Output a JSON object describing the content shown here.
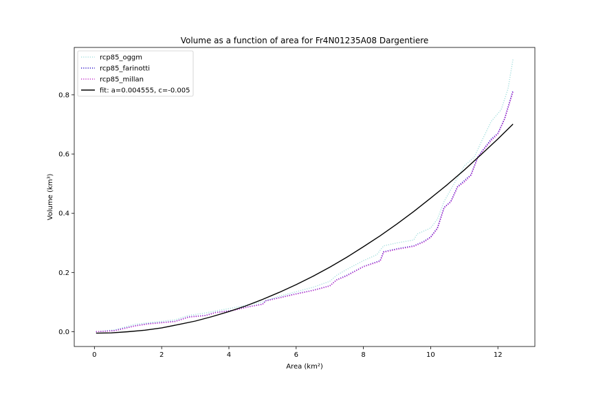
{
  "chart_data": {
    "type": "line",
    "title": "Volume as a function of area for Fr4N01235A08 Dargentiere",
    "xlabel": "Area (km²)",
    "ylabel": "Volume (km³)",
    "xlim": [
      -0.6,
      13.1
    ],
    "ylim": [
      -0.05,
      0.96
    ],
    "xticks": [
      0,
      2,
      4,
      6,
      8,
      10,
      12
    ],
    "yticks": [
      0.0,
      0.2,
      0.4,
      0.6,
      0.8
    ],
    "xtick_labels": [
      "0",
      "2",
      "4",
      "6",
      "8",
      "10",
      "12"
    ],
    "ytick_labels": [
      "0.0",
      "0.2",
      "0.4",
      "0.6",
      "0.8"
    ],
    "grid": false,
    "legend": {
      "placement": "top-left",
      "entries": [
        "rcp85_oggm",
        "rcp85_farinotti",
        "rcp85_millan",
        "fit: a=0.004555, c=-0.005"
      ]
    },
    "series": [
      {
        "name": "rcp85_oggm",
        "color": "#a8e0df",
        "style": "dotted",
        "x": [
          0.05,
          0.6,
          1.2,
          1.6,
          2.4,
          2.8,
          3.3,
          3.6,
          4.1,
          4.6,
          5.0,
          5.5,
          6.0,
          6.5,
          7.0,
          7.2,
          7.5,
          8.0,
          8.4,
          8.6,
          9.0,
          9.5,
          9.6,
          10.0,
          10.2,
          10.4,
          10.6,
          10.8,
          11.0,
          11.3,
          11.5,
          11.8,
          12.1,
          12.3,
          12.45
        ],
        "y": [
          0.0,
          0.006,
          0.025,
          0.03,
          0.04,
          0.055,
          0.063,
          0.07,
          0.08,
          0.092,
          0.1,
          0.12,
          0.135,
          0.15,
          0.17,
          0.19,
          0.21,
          0.24,
          0.26,
          0.29,
          0.3,
          0.31,
          0.33,
          0.35,
          0.38,
          0.44,
          0.48,
          0.52,
          0.56,
          0.59,
          0.64,
          0.71,
          0.75,
          0.82,
          0.92
        ]
      },
      {
        "name": "rcp85_farinotti",
        "color": "#2b10c8",
        "style": "dotted",
        "x": [
          0.05,
          0.6,
          1.2,
          1.6,
          2.4,
          2.8,
          3.3,
          3.6,
          4.1,
          4.6,
          5.0,
          5.1,
          5.5,
          6.0,
          6.5,
          7.0,
          7.2,
          7.5,
          8.0,
          8.5,
          8.6,
          9.0,
          9.5,
          9.8,
          10.0,
          10.2,
          10.4,
          10.6,
          10.8,
          11.0,
          11.2,
          11.4,
          11.6,
          11.8,
          12.0,
          12.2,
          12.45
        ],
        "y": [
          0.0,
          0.004,
          0.02,
          0.027,
          0.035,
          0.05,
          0.055,
          0.065,
          0.072,
          0.085,
          0.093,
          0.105,
          0.115,
          0.128,
          0.14,
          0.155,
          0.175,
          0.19,
          0.22,
          0.24,
          0.27,
          0.28,
          0.29,
          0.305,
          0.32,
          0.35,
          0.42,
          0.44,
          0.49,
          0.51,
          0.53,
          0.59,
          0.62,
          0.65,
          0.67,
          0.72,
          0.815
        ]
      },
      {
        "name": "rcp85_millan",
        "color": "#c42ec9",
        "style": "dotted",
        "x": [
          0.05,
          0.6,
          1.2,
          1.6,
          2.4,
          2.8,
          3.3,
          3.6,
          4.1,
          4.6,
          5.0,
          5.1,
          5.5,
          6.0,
          6.5,
          7.0,
          7.2,
          7.5,
          8.0,
          8.5,
          8.6,
          9.0,
          9.5,
          9.8,
          10.0,
          10.2,
          10.4,
          10.6,
          10.8,
          11.0,
          11.2,
          11.4,
          11.6,
          11.8,
          12.0,
          12.2,
          12.45
        ],
        "y": [
          0.0,
          0.003,
          0.019,
          0.026,
          0.034,
          0.049,
          0.054,
          0.064,
          0.071,
          0.084,
          0.092,
          0.104,
          0.114,
          0.127,
          0.139,
          0.154,
          0.174,
          0.188,
          0.219,
          0.238,
          0.268,
          0.278,
          0.288,
          0.303,
          0.318,
          0.348,
          0.418,
          0.438,
          0.488,
          0.505,
          0.528,
          0.588,
          0.618,
          0.645,
          0.668,
          0.718,
          0.81
        ]
      },
      {
        "name": "fit: a=0.004555, c=-0.005",
        "color": "#000000",
        "style": "solid",
        "x": [
          0.05,
          0.5,
          1.0,
          1.5,
          2.0,
          2.5,
          3.0,
          3.5,
          4.0,
          4.5,
          5.0,
          5.5,
          6.0,
          6.5,
          7.0,
          7.5,
          8.0,
          8.5,
          9.0,
          9.5,
          10.0,
          10.5,
          11.0,
          11.5,
          12.0,
          12.45
        ],
        "y": [
          -0.005,
          -0.004,
          0.0,
          0.005,
          0.013,
          0.024,
          0.036,
          0.051,
          0.068,
          0.087,
          0.109,
          0.133,
          0.159,
          0.187,
          0.218,
          0.251,
          0.287,
          0.324,
          0.364,
          0.406,
          0.451,
          0.497,
          0.546,
          0.598,
          0.651,
          0.701
        ]
      }
    ]
  }
}
